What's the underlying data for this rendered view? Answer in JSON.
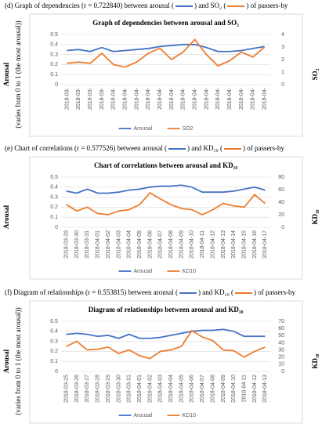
{
  "chart_data": [
    {
      "type": "line",
      "caption": [
        "(d) Graph of dependencies (r = 0.722840) between arousal (",
        ") and SO₂ (",
        ") of passers-by"
      ],
      "title": "Graph of dependencies between arousal and SO₂",
      "ylabel": "Arousal",
      "ylabel_note": "(varies from 0 to 1 (the most arousal))",
      "y2label": "SO₂",
      "categories": [
        "2018-03-",
        "2018-03-",
        "2018-03-",
        "2018-03-",
        "2018-04-",
        "2018-04-",
        "2018-04-",
        "2018-04-",
        "2018-04-",
        "2018-04-",
        "2018-04-",
        "2018-04-",
        "2018-04-",
        "2018-04-",
        "2018-04-",
        "2018-04-",
        "2018-04-",
        "2018-04-"
      ],
      "series": [
        {
          "name": "Arousal",
          "color": "#4472c4",
          "values": [
            0.34,
            0.35,
            0.33,
            0.37,
            0.33,
            0.34,
            0.35,
            0.36,
            0.38,
            0.39,
            0.4,
            0.4,
            0.37,
            0.33,
            0.33,
            0.34,
            0.36,
            0.38
          ]
        },
        {
          "name": "SO2",
          "color": "#ed7d31",
          "axis": "y2",
          "values": [
            1.7,
            1.8,
            1.7,
            2.5,
            1.6,
            1.4,
            1.8,
            2.5,
            2.9,
            2.0,
            2.6,
            3.6,
            2.4,
            1.5,
            1.9,
            2.6,
            2.2,
            3.0
          ]
        }
      ],
      "ylim": [
        0,
        0.5
      ],
      "yticks": [
        0,
        0.1,
        0.2,
        0.3,
        0.4,
        0.5
      ],
      "y2lim": [
        0,
        4
      ],
      "y2ticks": [
        0,
        1,
        2,
        3,
        4
      ],
      "grid": true
    },
    {
      "type": "line",
      "caption": [
        "(e) Chart of correlations (r = 0.577526) between arousal (",
        ") and KD₁₀ (",
        ") of passers-by"
      ],
      "title": "Chart of correlations between arousal and KD₁₀",
      "ylabel": "Arousal",
      "y2label": "KD₁₀",
      "categories": [
        "2018-03-29",
        "2018-03-30",
        "2018-03-31",
        "2018-04-01",
        "2018-04-02",
        "2018-04-03",
        "2018-04-04",
        "2018-04-05",
        "2018-04-06",
        "2018-04-07",
        "2018-04-08",
        "2018-04-09",
        "2018-04-10",
        "2018-04-11",
        "2018-04-12",
        "2018-04-13",
        "2018-04-14",
        "2018-04-15",
        "2018-04-16",
        "2018-04-17"
      ],
      "series": [
        {
          "name": "Arousal",
          "color": "#4472c4",
          "values": [
            0.36,
            0.34,
            0.38,
            0.34,
            0.34,
            0.35,
            0.37,
            0.38,
            0.4,
            0.41,
            0.41,
            0.42,
            0.4,
            0.35,
            0.35,
            0.35,
            0.36,
            0.38,
            0.4,
            0.37
          ]
        },
        {
          "name": "KD10",
          "color": "#ed7d31",
          "axis": "y2",
          "values": [
            36,
            26,
            32,
            22,
            20,
            26,
            28,
            36,
            55,
            45,
            36,
            30,
            28,
            20,
            28,
            38,
            34,
            32,
            52,
            38
          ]
        }
      ],
      "ylim": [
        0,
        0.5
      ],
      "yticks": [
        0,
        0.1,
        0.2,
        0.3,
        0.4,
        0.5
      ],
      "y2lim": [
        0,
        80
      ],
      "y2ticks": [
        0,
        20,
        40,
        60,
        80
      ],
      "grid": true
    },
    {
      "type": "line",
      "caption": [
        "(f) Diagram of relationships (r = 0.553815) between arousal (",
        ") and KD₁₀ (",
        ") of passers-by"
      ],
      "title": "Diagram of relationships between arousal and KD₁₀",
      "ylabel": "Arousal",
      "ylabel_note": "(varies from 0 to 1 (the most arousal))",
      "y2label": "KD₁₀",
      "categories": [
        "2018-03-25",
        "2018-03-26",
        "2018-03-27",
        "2018-03-28",
        "2018-03-29",
        "2018-03-30",
        "2018-03-31",
        "2018-04-01",
        "2018-04-02",
        "2018-04-03",
        "2018-04-04",
        "2018-04-05",
        "2018-04-06",
        "2018-04-07",
        "2018-04-08",
        "2018-04-09",
        "2018-04-10",
        "2018-04-11",
        "2018-04-12",
        "2018-04-13"
      ],
      "series": [
        {
          "name": "Arousal",
          "color": "#4472c4",
          "values": [
            0.37,
            0.38,
            0.37,
            0.35,
            0.36,
            0.33,
            0.37,
            0.33,
            0.33,
            0.34,
            0.36,
            0.38,
            0.4,
            0.41,
            0.41,
            0.42,
            0.4,
            0.35,
            0.35,
            0.35
          ]
        },
        {
          "name": "KD10",
          "color": "#ed7d31",
          "axis": "y2",
          "values": [
            35,
            42,
            30,
            31,
            34,
            25,
            30,
            22,
            18,
            28,
            30,
            35,
            57,
            48,
            43,
            30,
            29,
            20,
            28,
            34
          ]
        }
      ],
      "ylim": [
        0,
        0.5
      ],
      "yticks": [
        0,
        0.1,
        0.2,
        0.3,
        0.4,
        0.5
      ],
      "y2lim": [
        0,
        70
      ],
      "y2ticks": [
        0,
        10,
        20,
        30,
        40,
        50,
        60,
        70
      ],
      "grid": true
    }
  ]
}
